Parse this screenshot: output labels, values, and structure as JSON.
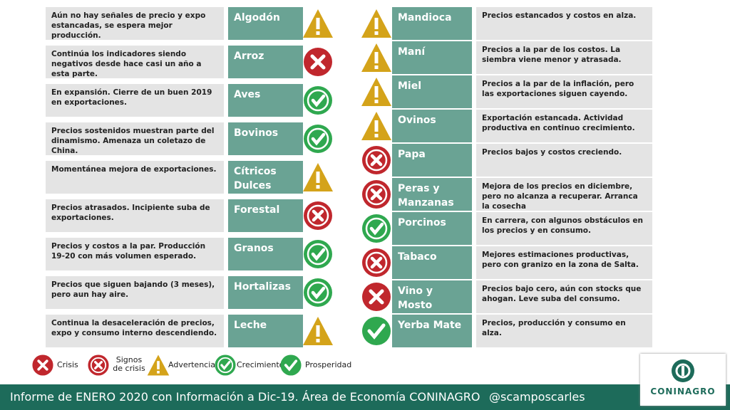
{
  "left": [
    {
      "name": "Algodón",
      "text": "Aún no hay señales de precio y expo estancadas, se espera mejor producción."
    },
    {
      "name": "Arroz",
      "text": "Continúa los indicadores siendo negativos desde hace casi un año a esta parte."
    },
    {
      "name": "Aves",
      "text": "En expansión. Cierre de un buen 2019 en exportaciones."
    },
    {
      "name": "Bovinos",
      "text": "Precios sostenidos muestran parte del dinamismo. Amenaza un coletazo de China."
    },
    {
      "name": "Cítricos Dulces",
      "text": "Momentánea mejora de exportaciones."
    },
    {
      "name": "Forestal",
      "text": "Precios atrasados. Incipiente suba de exportaciones."
    },
    {
      "name": "Granos",
      "text": "Precios y costos a la par. Producción 19-20 con más volumen esperado."
    },
    {
      "name": "Hortalizas",
      "text": "Precios que siguen bajando (3 meses), pero aun hay aire."
    },
    {
      "name": "Leche",
      "text": "Continua la desaceleración de precios, expo y consumo interno descendiendo."
    }
  ],
  "right": [
    {
      "name": "Mandioca",
      "text": "Precios estancados y costos en alza."
    },
    {
      "name": "Maní",
      "text": "Precios a la par de los costos. La siembra viene menor y atrasada."
    },
    {
      "name": "Miel",
      "text": "Precios a la par de la inflación, pero las exportaciones siguen cayendo."
    },
    {
      "name": "Ovinos",
      "text": "Exportación estancada. Actividad productiva en continuo crecimiento."
    },
    {
      "name": "Papa",
      "text": "Precios bajos y costos creciendo."
    },
    {
      "name": "Peras y Manzanas",
      "text": "Mejora de los precios en diciembre, pero no alcanza a recuperar. Arranca la cosecha"
    },
    {
      "name": "Porcinos",
      "text": "En carrera, con algunos obstáculos en los precios y en consumo."
    },
    {
      "name": "Tabaco",
      "text": "Mejores estimaciones productivas, pero con granizo en la zona de Salta."
    },
    {
      "name": "Vino y Mosto",
      "text": "Precios bajo cero, aún con stocks que ahogan. Leve suba del consumo."
    },
    {
      "name": "Yerba Mate",
      "text": "Precios, producción y consumo en alza."
    }
  ],
  "legend": [
    "Crisis",
    "Signos de crisis",
    "Advertencia",
    "Crecimiento",
    "Prosperidad"
  ],
  "footer": {
    "text": "Informe de ENERO 2020  con Información a Dic-19. Área de Economía CONINAGRO",
    "handle": "@scamposcarles"
  },
  "logo": {
    "name": "CONINAGRO"
  }
}
